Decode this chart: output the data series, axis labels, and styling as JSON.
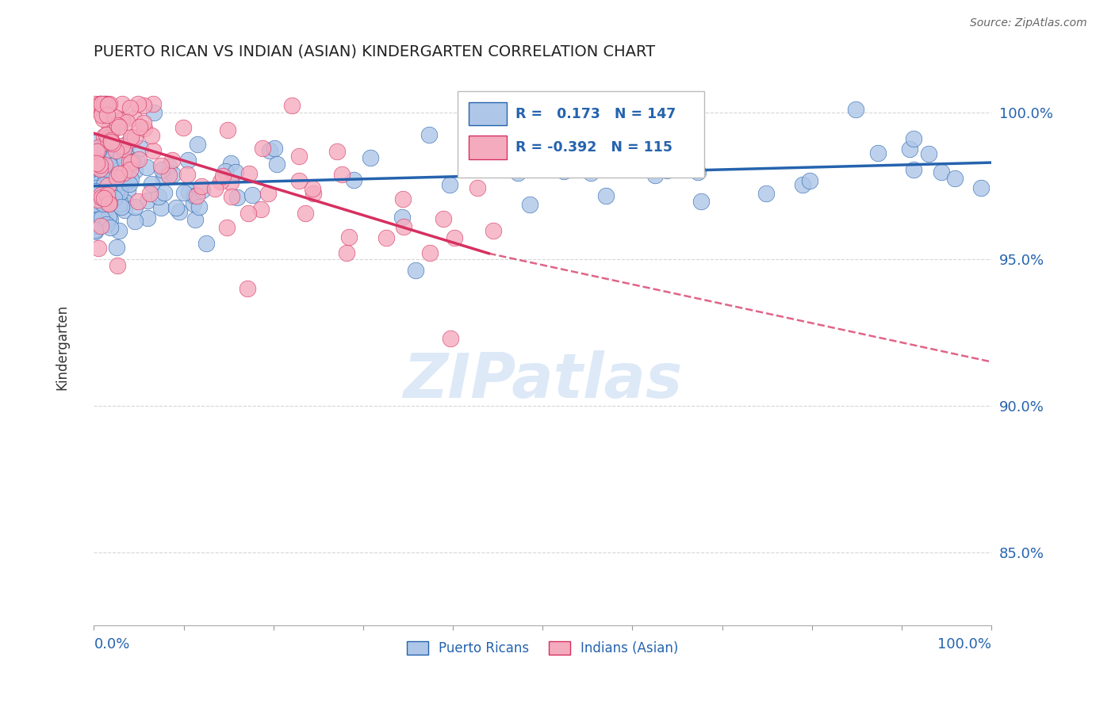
{
  "title": "PUERTO RICAN VS INDIAN (ASIAN) KINDERGARTEN CORRELATION CHART",
  "source": "Source: ZipAtlas.com",
  "ylabel": "Kindergarten",
  "r_blue": 0.173,
  "n_blue": 147,
  "r_pink": -0.392,
  "n_pink": 115,
  "legend_blue": "Puerto Ricans",
  "legend_pink": "Indians (Asian)",
  "ytick_labels": [
    "85.0%",
    "90.0%",
    "95.0%",
    "100.0%"
  ],
  "ytick_values": [
    0.85,
    0.9,
    0.95,
    1.0
  ],
  "ymin": 0.825,
  "ymax": 1.015,
  "xmin": 0.0,
  "xmax": 1.0,
  "blue_color": "#aec6e8",
  "pink_color": "#f5abbe",
  "blue_line_color": "#2563ae",
  "pink_line_color": "#d63060",
  "grid_color": "#cccccc",
  "watermark_color": "#dde9f7",
  "background_color": "#ffffff",
  "title_color": "#222222",
  "axis_label_color": "#2563ae",
  "blue_trend_start_x": 0.0,
  "blue_trend_start_y": 0.975,
  "blue_trend_end_x": 1.0,
  "blue_trend_end_y": 0.983,
  "pink_trend_start_x": 0.0,
  "pink_trend_start_y": 0.993,
  "pink_trend_solid_end_x": 0.44,
  "pink_trend_solid_end_y": 0.952,
  "pink_trend_dash_end_x": 1.0,
  "pink_trend_dash_end_y": 0.915
}
